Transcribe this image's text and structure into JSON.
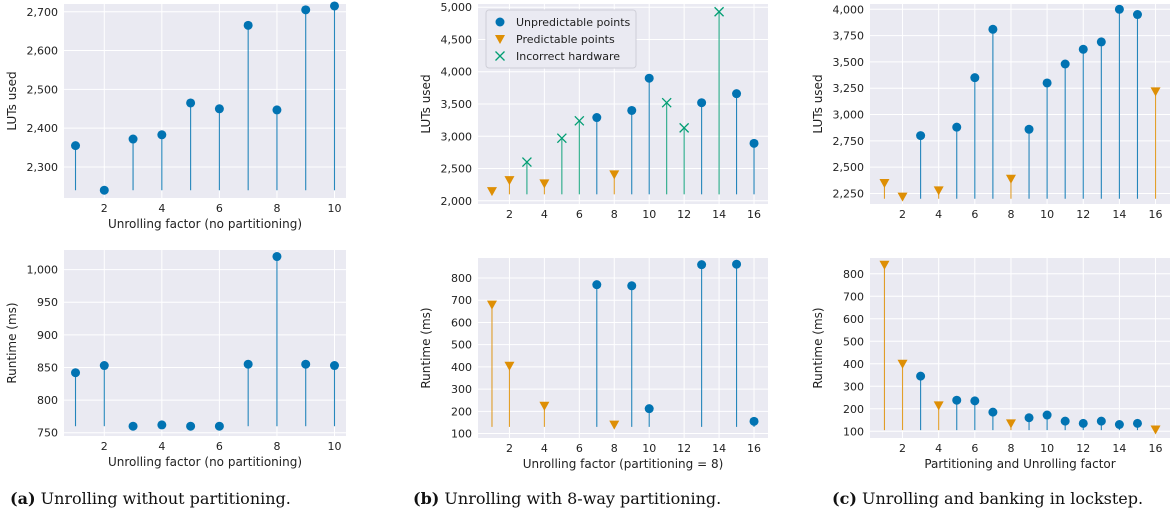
{
  "colors": {
    "unpredictable": "#0173b2",
    "predictable": "#de8f05",
    "incorrect": "#029e73"
  },
  "legend": [
    "Unpredictable points",
    "Predictable points",
    "Incorrect hardware"
  ],
  "captions": [
    {
      "tag": "(a)",
      "text": " Unrolling without partitioning."
    },
    {
      "tag": "(b)",
      "text": " Unrolling with 8-way partitioning."
    },
    {
      "tag": "(c)",
      "text": " Unrolling and banking in lockstep."
    }
  ],
  "chart_data": [
    {
      "id": "a-top",
      "type": "scatter",
      "xlabel": "Unrolling factor (no partitioning)",
      "ylabel": "LUTs used",
      "xlim": [
        0.6,
        10.4
      ],
      "ylim": [
        2220,
        2720
      ],
      "xticks": [
        2,
        4,
        6,
        8,
        10
      ],
      "yticks": [
        2300,
        2400,
        2500,
        2600,
        2700
      ],
      "yticklabels": [
        "2,300",
        "2,400",
        "2,500",
        "2,600",
        "2,700"
      ],
      "baseline": 2240,
      "points": [
        {
          "x": 1,
          "y": 2355,
          "kind": "unpredictable"
        },
        {
          "x": 2,
          "y": 2240,
          "kind": "unpredictable"
        },
        {
          "x": 3,
          "y": 2372,
          "kind": "unpredictable"
        },
        {
          "x": 4,
          "y": 2383,
          "kind": "unpredictable"
        },
        {
          "x": 5,
          "y": 2465,
          "kind": "unpredictable"
        },
        {
          "x": 6,
          "y": 2450,
          "kind": "unpredictable"
        },
        {
          "x": 7,
          "y": 2665,
          "kind": "unpredictable"
        },
        {
          "x": 8,
          "y": 2447,
          "kind": "unpredictable"
        },
        {
          "x": 9,
          "y": 2705,
          "kind": "unpredictable"
        },
        {
          "x": 10,
          "y": 2715,
          "kind": "unpredictable"
        }
      ]
    },
    {
      "id": "a-bottom",
      "type": "scatter",
      "xlabel": "Unrolling factor (no partitioning)",
      "ylabel": "Runtime (ms)",
      "xlim": [
        0.6,
        10.4
      ],
      "ylim": [
        745,
        1030
      ],
      "xticks": [
        2,
        4,
        6,
        8,
        10
      ],
      "yticks": [
        750,
        800,
        850,
        900,
        950,
        1000
      ],
      "yticklabels": [
        "750",
        "800",
        "850",
        "900",
        "950",
        "1,000"
      ],
      "baseline": 760,
      "points": [
        {
          "x": 1,
          "y": 842,
          "kind": "unpredictable"
        },
        {
          "x": 2,
          "y": 853,
          "kind": "unpredictable"
        },
        {
          "x": 3,
          "y": 760,
          "kind": "unpredictable"
        },
        {
          "x": 4,
          "y": 762,
          "kind": "unpredictable"
        },
        {
          "x": 5,
          "y": 760,
          "kind": "unpredictable"
        },
        {
          "x": 6,
          "y": 760,
          "kind": "unpredictable"
        },
        {
          "x": 7,
          "y": 855,
          "kind": "unpredictable"
        },
        {
          "x": 8,
          "y": 1020,
          "kind": "unpredictable"
        },
        {
          "x": 9,
          "y": 855,
          "kind": "unpredictable"
        },
        {
          "x": 10,
          "y": 853,
          "kind": "unpredictable"
        }
      ]
    },
    {
      "id": "b-top",
      "type": "scatter",
      "xlabel": "",
      "ylabel": "LUTs used",
      "xlim": [
        0.2,
        16.8
      ],
      "ylim": [
        1950,
        5050
      ],
      "xticks": [
        2,
        4,
        6,
        8,
        10,
        12,
        14,
        16
      ],
      "yticks": [
        2000,
        2500,
        3000,
        3500,
        4000,
        4500,
        5000
      ],
      "yticklabels": [
        "2,000",
        "2,500",
        "3,000",
        "3,500",
        "4,000",
        "4,500",
        "5,000"
      ],
      "baseline": 2100,
      "legend": true,
      "points": [
        {
          "x": 1,
          "y": 2150,
          "kind": "predictable"
        },
        {
          "x": 2,
          "y": 2320,
          "kind": "predictable"
        },
        {
          "x": 3,
          "y": 2600,
          "kind": "incorrect"
        },
        {
          "x": 4,
          "y": 2270,
          "kind": "predictable"
        },
        {
          "x": 5,
          "y": 2970,
          "kind": "incorrect"
        },
        {
          "x": 6,
          "y": 3240,
          "kind": "incorrect"
        },
        {
          "x": 7,
          "y": 3290,
          "kind": "unpredictable"
        },
        {
          "x": 8,
          "y": 2410,
          "kind": "predictable"
        },
        {
          "x": 9,
          "y": 3400,
          "kind": "unpredictable"
        },
        {
          "x": 10,
          "y": 3900,
          "kind": "unpredictable"
        },
        {
          "x": 11,
          "y": 3520,
          "kind": "incorrect"
        },
        {
          "x": 12,
          "y": 3130,
          "kind": "incorrect"
        },
        {
          "x": 13,
          "y": 3520,
          "kind": "unpredictable"
        },
        {
          "x": 14,
          "y": 4930,
          "kind": "incorrect"
        },
        {
          "x": 15,
          "y": 3660,
          "kind": "unpredictable"
        },
        {
          "x": 16,
          "y": 2890,
          "kind": "unpredictable"
        }
      ]
    },
    {
      "id": "b-bottom",
      "type": "scatter",
      "xlabel": "Unrolling factor (partitioning = 8)",
      "ylabel": "Runtime (ms)",
      "xlim": [
        0.2,
        16.8
      ],
      "ylim": [
        80,
        890
      ],
      "xticks": [
        2,
        4,
        6,
        8,
        10,
        12,
        14,
        16
      ],
      "yticks": [
        100,
        200,
        300,
        400,
        500,
        600,
        700,
        800
      ],
      "yticklabels": [
        "100",
        "200",
        "300",
        "400",
        "500",
        "600",
        "700",
        "800"
      ],
      "baseline": 130,
      "points": [
        {
          "x": 1,
          "y": 680,
          "kind": "predictable"
        },
        {
          "x": 2,
          "y": 405,
          "kind": "predictable"
        },
        {
          "x": 4,
          "y": 225,
          "kind": "predictable"
        },
        {
          "x": 7,
          "y": 770,
          "kind": "unpredictable"
        },
        {
          "x": 8,
          "y": 140,
          "kind": "predictable"
        },
        {
          "x": 9,
          "y": 765,
          "kind": "unpredictable"
        },
        {
          "x": 10,
          "y": 212,
          "kind": "unpredictable"
        },
        {
          "x": 13,
          "y": 860,
          "kind": "unpredictable"
        },
        {
          "x": 15,
          "y": 862,
          "kind": "unpredictable"
        },
        {
          "x": 16,
          "y": 155,
          "kind": "unpredictable"
        }
      ]
    },
    {
      "id": "c-top",
      "type": "scatter",
      "xlabel": "",
      "ylabel": "LUTs used",
      "xlim": [
        0.2,
        16.8
      ],
      "ylim": [
        2150,
        4050
      ],
      "xticks": [
        2,
        4,
        6,
        8,
        10,
        12,
        14,
        16
      ],
      "yticks": [
        2250,
        2500,
        2750,
        3000,
        3250,
        3500,
        3750,
        4000
      ],
      "yticklabels": [
        "2,250",
        "2,500",
        "2,750",
        "3,000",
        "3,250",
        "3,500",
        "3,750",
        "4,000"
      ],
      "baseline": 2200,
      "points": [
        {
          "x": 1,
          "y": 2350,
          "kind": "predictable"
        },
        {
          "x": 2,
          "y": 2220,
          "kind": "predictable"
        },
        {
          "x": 3,
          "y": 2800,
          "kind": "unpredictable"
        },
        {
          "x": 4,
          "y": 2280,
          "kind": "predictable"
        },
        {
          "x": 5,
          "y": 2880,
          "kind": "unpredictable"
        },
        {
          "x": 6,
          "y": 3350,
          "kind": "unpredictable"
        },
        {
          "x": 7,
          "y": 3810,
          "kind": "unpredictable"
        },
        {
          "x": 8,
          "y": 2390,
          "kind": "predictable"
        },
        {
          "x": 9,
          "y": 2860,
          "kind": "unpredictable"
        },
        {
          "x": 10,
          "y": 3300,
          "kind": "unpredictable"
        },
        {
          "x": 11,
          "y": 3480,
          "kind": "unpredictable"
        },
        {
          "x": 12,
          "y": 3620,
          "kind": "unpredictable"
        },
        {
          "x": 13,
          "y": 3690,
          "kind": "unpredictable"
        },
        {
          "x": 14,
          "y": 4000,
          "kind": "unpredictable"
        },
        {
          "x": 15,
          "y": 3950,
          "kind": "unpredictable"
        },
        {
          "x": 16,
          "y": 3220,
          "kind": "predictable"
        }
      ]
    },
    {
      "id": "c-bottom",
      "type": "scatter",
      "xlabel": "Partitioning and Unrolling factor",
      "ylabel": "Runtime (ms)",
      "xlim": [
        0.2,
        16.8
      ],
      "ylim": [
        70,
        870
      ],
      "xticks": [
        2,
        4,
        6,
        8,
        10,
        12,
        14,
        16
      ],
      "yticks": [
        100,
        200,
        300,
        400,
        500,
        600,
        700,
        800
      ],
      "yticklabels": [
        "100",
        "200",
        "300",
        "400",
        "500",
        "600",
        "700",
        "800"
      ],
      "baseline": 105,
      "points": [
        {
          "x": 1,
          "y": 840,
          "kind": "predictable"
        },
        {
          "x": 2,
          "y": 400,
          "kind": "predictable"
        },
        {
          "x": 3,
          "y": 345,
          "kind": "unpredictable"
        },
        {
          "x": 4,
          "y": 215,
          "kind": "predictable"
        },
        {
          "x": 5,
          "y": 238,
          "kind": "unpredictable"
        },
        {
          "x": 6,
          "y": 235,
          "kind": "unpredictable"
        },
        {
          "x": 7,
          "y": 185,
          "kind": "unpredictable"
        },
        {
          "x": 8,
          "y": 135,
          "kind": "predictable"
        },
        {
          "x": 9,
          "y": 160,
          "kind": "unpredictable"
        },
        {
          "x": 10,
          "y": 172,
          "kind": "unpredictable"
        },
        {
          "x": 11,
          "y": 145,
          "kind": "unpredictable"
        },
        {
          "x": 12,
          "y": 135,
          "kind": "unpredictable"
        },
        {
          "x": 13,
          "y": 145,
          "kind": "unpredictable"
        },
        {
          "x": 14,
          "y": 130,
          "kind": "unpredictable"
        },
        {
          "x": 15,
          "y": 135,
          "kind": "unpredictable"
        },
        {
          "x": 16,
          "y": 108,
          "kind": "predictable"
        }
      ]
    }
  ]
}
